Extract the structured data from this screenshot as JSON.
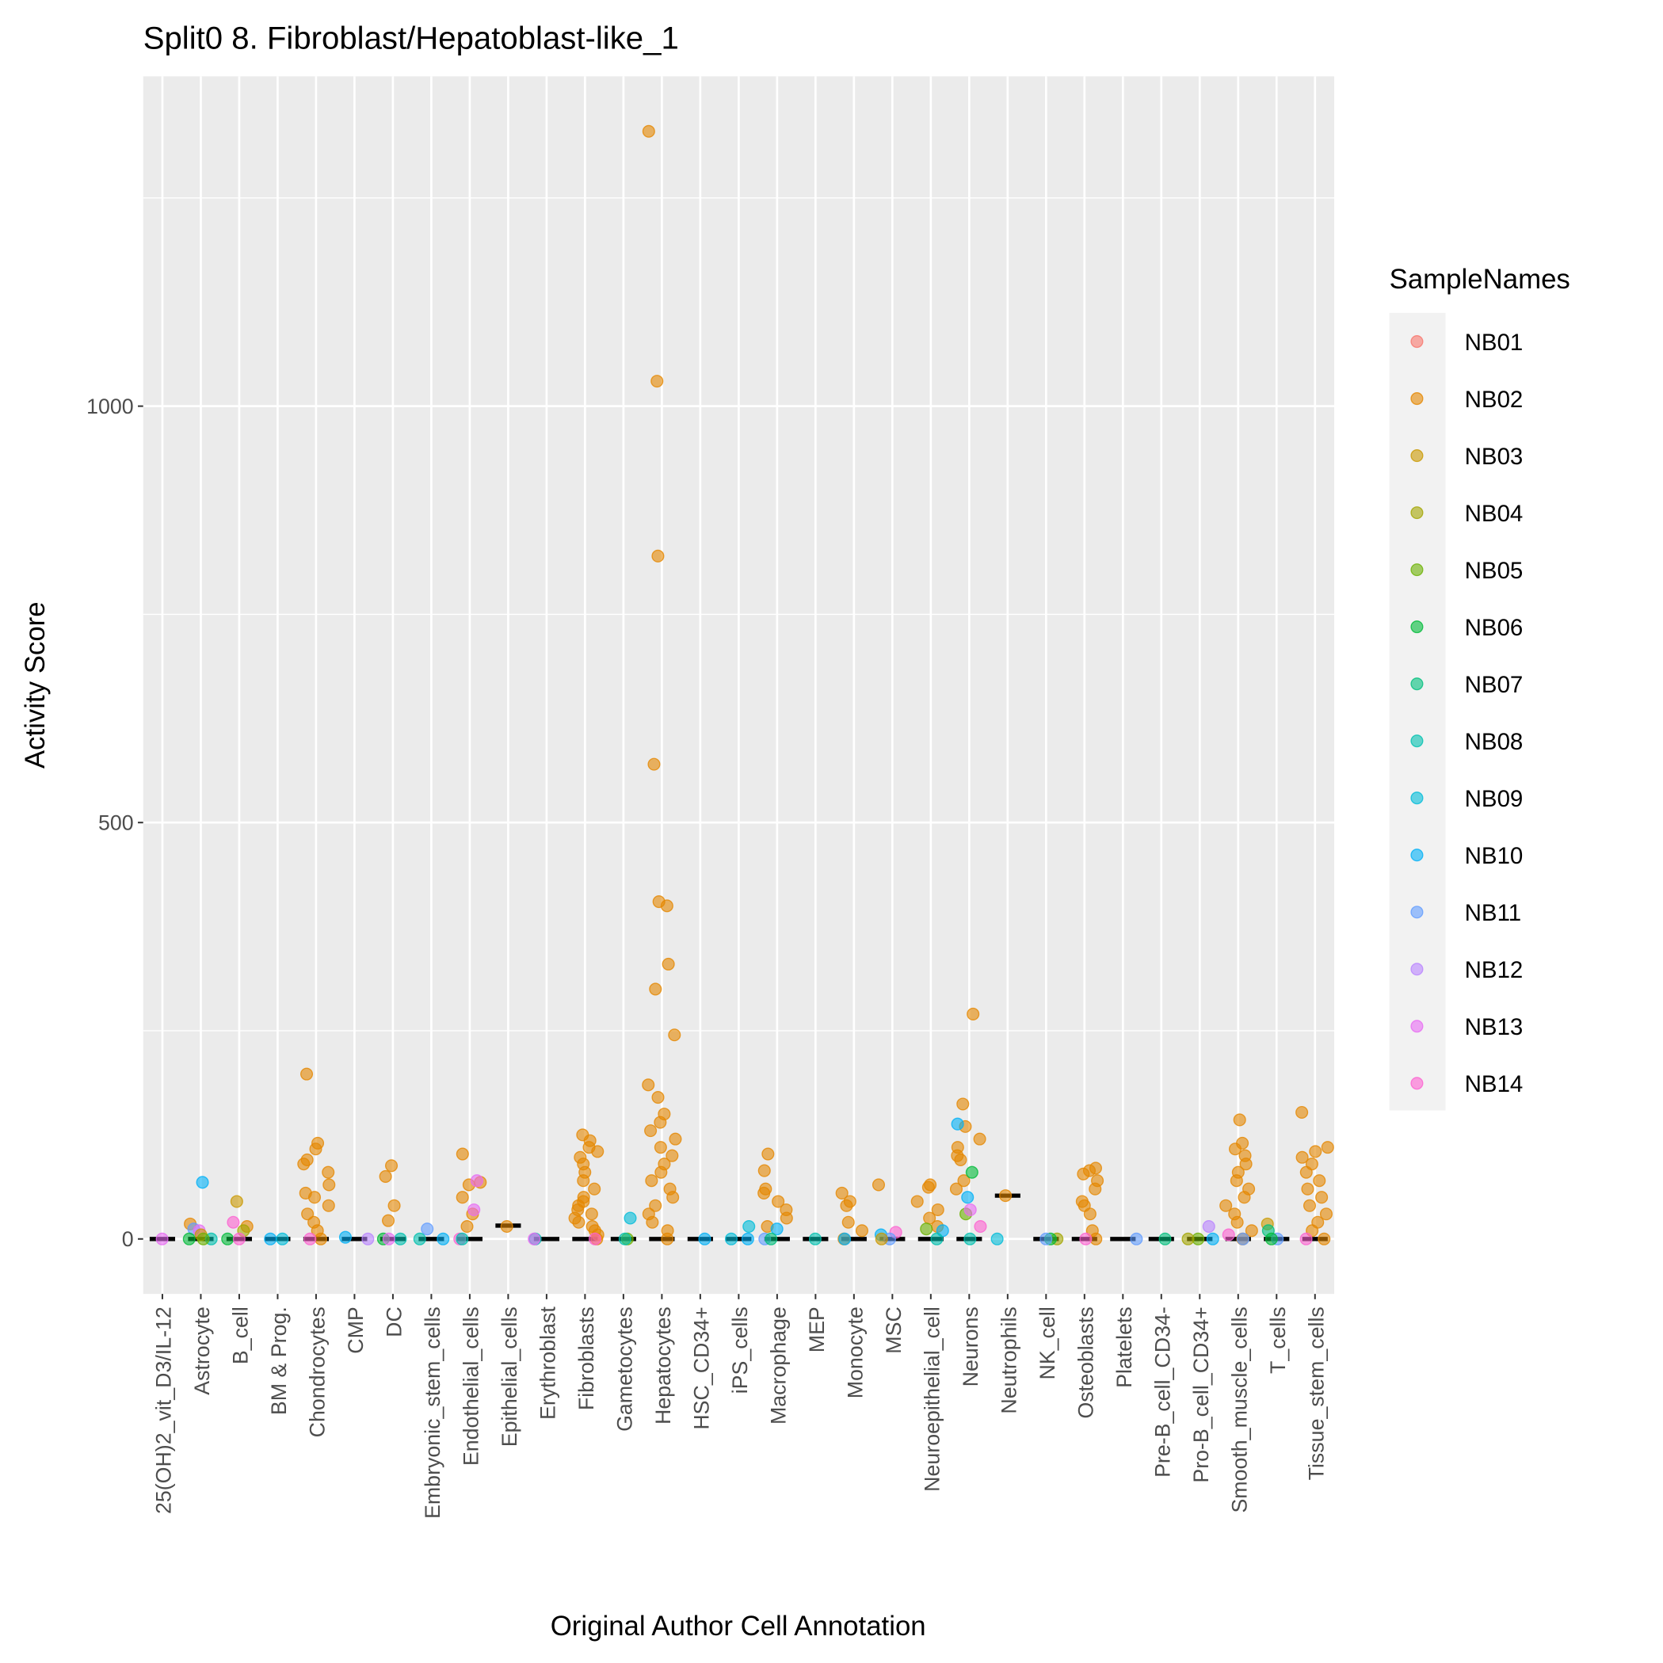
{
  "chart_data": {
    "type": "scatter",
    "title": "Split0 8. Fibroblast/Hepatoblast-like_1",
    "xlabel": "Original Author Cell Annotation",
    "ylabel": "Activity Score",
    "ylim": [
      -66,
      1396
    ],
    "yticks": [
      0,
      500,
      1000
    ],
    "grid": true,
    "legend": {
      "title": "SampleNames",
      "position": "right",
      "entries": [
        "NB01",
        "NB02",
        "NB03",
        "NB04",
        "NB05",
        "NB06",
        "NB07",
        "NB08",
        "NB09",
        "NB10",
        "NB11",
        "NB12",
        "NB13",
        "NB14"
      ],
      "colors": [
        "#F8766D",
        "#E58700",
        "#C99800",
        "#A3A500",
        "#6BB100",
        "#00BA38",
        "#00BF7D",
        "#00C0AF",
        "#00BCD8",
        "#00B0F6",
        "#619CFF",
        "#B983FF",
        "#E76BF3",
        "#FD61D1"
      ]
    },
    "categories": [
      "25(OH)2_vit_D3/IL-12",
      "Astrocyte",
      "B_cell",
      "BM & Prog.",
      "Chondrocytes",
      "CMP",
      "DC",
      "Embryonic_stem_cells",
      "Endothelial_cells",
      "Epithelial_cells",
      "Erythroblast",
      "Fibroblasts",
      "Gametocytes",
      "Hepatocytes",
      "HSC_CD34+",
      "iPS_cells",
      "Macrophage",
      "MEP",
      "Monocyte",
      "MSC",
      "Neuroepithelial_cell",
      "Neurons",
      "Neutrophils",
      "NK_cell",
      "Osteoblasts",
      "Platelets",
      "Pre-B_cell_CD34-",
      "Pro-B_cell_CD34+",
      "Smooth_muscle_cells",
      "T_cells",
      "Tissue_stem_cells"
    ],
    "medians": [
      0,
      0,
      0,
      0,
      0,
      0,
      0,
      0,
      0,
      16,
      0,
      0,
      0,
      0,
      0,
      0,
      0,
      0,
      0,
      0,
      0,
      0,
      52,
      0,
      0,
      0,
      0,
      0,
      0,
      0,
      0
    ],
    "points": [
      [
        [
          0,
          "NB13"
        ]
      ],
      [
        [
          68,
          "NB10"
        ],
        [
          18,
          "NB02"
        ],
        [
          12,
          "NB11"
        ],
        [
          10,
          "NB13"
        ],
        [
          5,
          "NB03"
        ],
        [
          0,
          "NB06"
        ],
        [
          0,
          "NB08"
        ],
        [
          0,
          "NB05"
        ]
      ],
      [
        [
          45,
          "NB03"
        ],
        [
          20,
          "NB14"
        ],
        [
          15,
          "NB02"
        ],
        [
          10,
          "NB04"
        ],
        [
          0,
          "NB06"
        ],
        [
          0,
          "NB14"
        ]
      ],
      [
        [
          0,
          "NB10"
        ],
        [
          0,
          "NB09"
        ]
      ],
      [
        [
          198,
          "NB02"
        ],
        [
          115,
          "NB02"
        ],
        [
          108,
          "NB02"
        ],
        [
          95,
          "NB02"
        ],
        [
          90,
          "NB02"
        ],
        [
          80,
          "NB02"
        ],
        [
          65,
          "NB02"
        ],
        [
          55,
          "NB02"
        ],
        [
          50,
          "NB02"
        ],
        [
          40,
          "NB02"
        ],
        [
          30,
          "NB02"
        ],
        [
          20,
          "NB02"
        ],
        [
          10,
          "NB02"
        ],
        [
          0,
          "NB02"
        ],
        [
          0,
          "NB14"
        ]
      ],
      [
        [
          2,
          "NB10"
        ],
        [
          0,
          "NB12"
        ]
      ],
      [
        [
          88,
          "NB02"
        ],
        [
          75,
          "NB02"
        ],
        [
          40,
          "NB02"
        ],
        [
          22,
          "NB02"
        ],
        [
          0,
          "NB06"
        ],
        [
          0,
          "NB08"
        ],
        [
          0,
          "NB13"
        ]
      ],
      [
        [
          12,
          "NB11"
        ],
        [
          0,
          "NB08"
        ],
        [
          0,
          "NB10"
        ]
      ],
      [
        [
          102,
          "NB02"
        ],
        [
          68,
          "NB02"
        ],
        [
          65,
          "NB02"
        ],
        [
          50,
          "NB02"
        ],
        [
          30,
          "NB02"
        ],
        [
          15,
          "NB02"
        ],
        [
          70,
          "NB13"
        ],
        [
          35,
          "NB13"
        ],
        [
          0,
          "NB14"
        ],
        [
          0,
          "NB08"
        ]
      ],
      [
        [
          15,
          "NB02"
        ]
      ],
      [
        [
          0,
          "NB08"
        ],
        [
          0,
          "NB13"
        ]
      ],
      [
        [
          125,
          "NB02"
        ],
        [
          118,
          "NB02"
        ],
        [
          110,
          "NB02"
        ],
        [
          105,
          "NB02"
        ],
        [
          98,
          "NB02"
        ],
        [
          90,
          "NB02"
        ],
        [
          80,
          "NB02"
        ],
        [
          70,
          "NB02"
        ],
        [
          60,
          "NB02"
        ],
        [
          50,
          "NB02"
        ],
        [
          45,
          "NB02"
        ],
        [
          40,
          "NB02"
        ],
        [
          35,
          "NB02"
        ],
        [
          30,
          "NB02"
        ],
        [
          25,
          "NB02"
        ],
        [
          20,
          "NB02"
        ],
        [
          15,
          "NB02"
        ],
        [
          10,
          "NB02"
        ],
        [
          5,
          "NB02"
        ],
        [
          0,
          "NB02"
        ],
        [
          0,
          "NB14"
        ]
      ],
      [
        [
          25,
          "NB09"
        ],
        [
          0,
          "NB05"
        ],
        [
          0,
          "NB08"
        ]
      ],
      [
        [
          1330,
          "NB02"
        ],
        [
          1030,
          "NB02"
        ],
        [
          820,
          "NB02"
        ],
        [
          570,
          "NB02"
        ],
        [
          405,
          "NB02"
        ],
        [
          400,
          "NB02"
        ],
        [
          330,
          "NB02"
        ],
        [
          300,
          "NB02"
        ],
        [
          245,
          "NB02"
        ],
        [
          185,
          "NB02"
        ],
        [
          170,
          "NB02"
        ],
        [
          150,
          "NB02"
        ],
        [
          140,
          "NB02"
        ],
        [
          130,
          "NB02"
        ],
        [
          120,
          "NB02"
        ],
        [
          110,
          "NB02"
        ],
        [
          100,
          "NB02"
        ],
        [
          90,
          "NB02"
        ],
        [
          80,
          "NB02"
        ],
        [
          70,
          "NB02"
        ],
        [
          60,
          "NB02"
        ],
        [
          50,
          "NB02"
        ],
        [
          40,
          "NB02"
        ],
        [
          30,
          "NB02"
        ],
        [
          20,
          "NB02"
        ],
        [
          10,
          "NB02"
        ],
        [
          0,
          "NB02"
        ]
      ],
      [
        [
          0,
          "NB10"
        ]
      ],
      [
        [
          15,
          "NB09"
        ],
        [
          0,
          "NB09"
        ],
        [
          0,
          "NB10"
        ]
      ],
      [
        [
          102,
          "NB02"
        ],
        [
          82,
          "NB02"
        ],
        [
          60,
          "NB02"
        ],
        [
          55,
          "NB02"
        ],
        [
          45,
          "NB02"
        ],
        [
          35,
          "NB02"
        ],
        [
          25,
          "NB02"
        ],
        [
          15,
          "NB02"
        ],
        [
          12,
          "NB10"
        ],
        [
          0,
          "NB11"
        ],
        [
          0,
          "NB07"
        ]
      ],
      [
        [
          0,
          "NB08"
        ]
      ],
      [
        [
          55,
          "NB02"
        ],
        [
          45,
          "NB02"
        ],
        [
          40,
          "NB02"
        ],
        [
          20,
          "NB02"
        ],
        [
          10,
          "NB02"
        ],
        [
          0,
          "NB02"
        ],
        [
          0,
          "NB10"
        ]
      ],
      [
        [
          65,
          "NB02"
        ],
        [
          8,
          "NB14"
        ],
        [
          5,
          "NB10"
        ],
        [
          0,
          "NB11"
        ],
        [
          0,
          "NB03"
        ]
      ],
      [
        [
          65,
          "NB02"
        ],
        [
          62,
          "NB02"
        ],
        [
          45,
          "NB02"
        ],
        [
          35,
          "NB02"
        ],
        [
          25,
          "NB02"
        ],
        [
          15,
          "NB02"
        ],
        [
          12,
          "NB05"
        ],
        [
          10,
          "NB10"
        ],
        [
          0,
          "NB08"
        ]
      ],
      [
        [
          270,
          "NB02"
        ],
        [
          162,
          "NB02"
        ],
        [
          135,
          "NB02"
        ],
        [
          138,
          "NB10"
        ],
        [
          120,
          "NB02"
        ],
        [
          110,
          "NB02"
        ],
        [
          100,
          "NB02"
        ],
        [
          95,
          "NB02"
        ],
        [
          70,
          "NB02"
        ],
        [
          60,
          "NB02"
        ],
        [
          80,
          "NB06"
        ],
        [
          50,
          "NB10"
        ],
        [
          30,
          "NB05"
        ],
        [
          35,
          "NB13"
        ],
        [
          15,
          "NB14"
        ],
        [
          0,
          "NB08"
        ]
      ],
      [
        [
          52,
          "NB02"
        ],
        [
          0,
          "NB09"
        ]
      ],
      [
        [
          0,
          "NB04"
        ],
        [
          0,
          "NB06"
        ],
        [
          0,
          "NB11"
        ]
      ],
      [
        [
          85,
          "NB02"
        ],
        [
          82,
          "NB02"
        ],
        [
          78,
          "NB02"
        ],
        [
          70,
          "NB02"
        ],
        [
          60,
          "NB02"
        ],
        [
          45,
          "NB02"
        ],
        [
          40,
          "NB02"
        ],
        [
          30,
          "NB02"
        ],
        [
          10,
          "NB02"
        ],
        [
          0,
          "NB02"
        ],
        [
          0,
          "NB14"
        ]
      ],
      [
        [
          0,
          "NB11"
        ]
      ],
      [
        [
          0,
          "NB07"
        ]
      ],
      [
        [
          15,
          "NB12"
        ],
        [
          0,
          "NB05"
        ],
        [
          0,
          "NB04"
        ],
        [
          0,
          "NB10"
        ]
      ],
      [
        [
          143,
          "NB02"
        ],
        [
          115,
          "NB02"
        ],
        [
          108,
          "NB02"
        ],
        [
          100,
          "NB02"
        ],
        [
          90,
          "NB02"
        ],
        [
          80,
          "NB02"
        ],
        [
          70,
          "NB02"
        ],
        [
          60,
          "NB02"
        ],
        [
          50,
          "NB02"
        ],
        [
          40,
          "NB02"
        ],
        [
          30,
          "NB02"
        ],
        [
          20,
          "NB02"
        ],
        [
          10,
          "NB02"
        ],
        [
          0,
          "NB02"
        ],
        [
          5,
          "NB14"
        ],
        [
          0,
          "NB11"
        ]
      ],
      [
        [
          18,
          "NB03"
        ],
        [
          10,
          "NB07"
        ],
        [
          0,
          "NB11"
        ],
        [
          0,
          "NB06"
        ]
      ],
      [
        [
          152,
          "NB02"
        ],
        [
          110,
          "NB02"
        ],
        [
          105,
          "NB02"
        ],
        [
          98,
          "NB02"
        ],
        [
          90,
          "NB02"
        ],
        [
          80,
          "NB02"
        ],
        [
          70,
          "NB02"
        ],
        [
          60,
          "NB02"
        ],
        [
          50,
          "NB02"
        ],
        [
          40,
          "NB02"
        ],
        [
          30,
          "NB02"
        ],
        [
          20,
          "NB02"
        ],
        [
          10,
          "NB02"
        ],
        [
          0,
          "NB02"
        ],
        [
          0,
          "NB14"
        ]
      ]
    ]
  }
}
